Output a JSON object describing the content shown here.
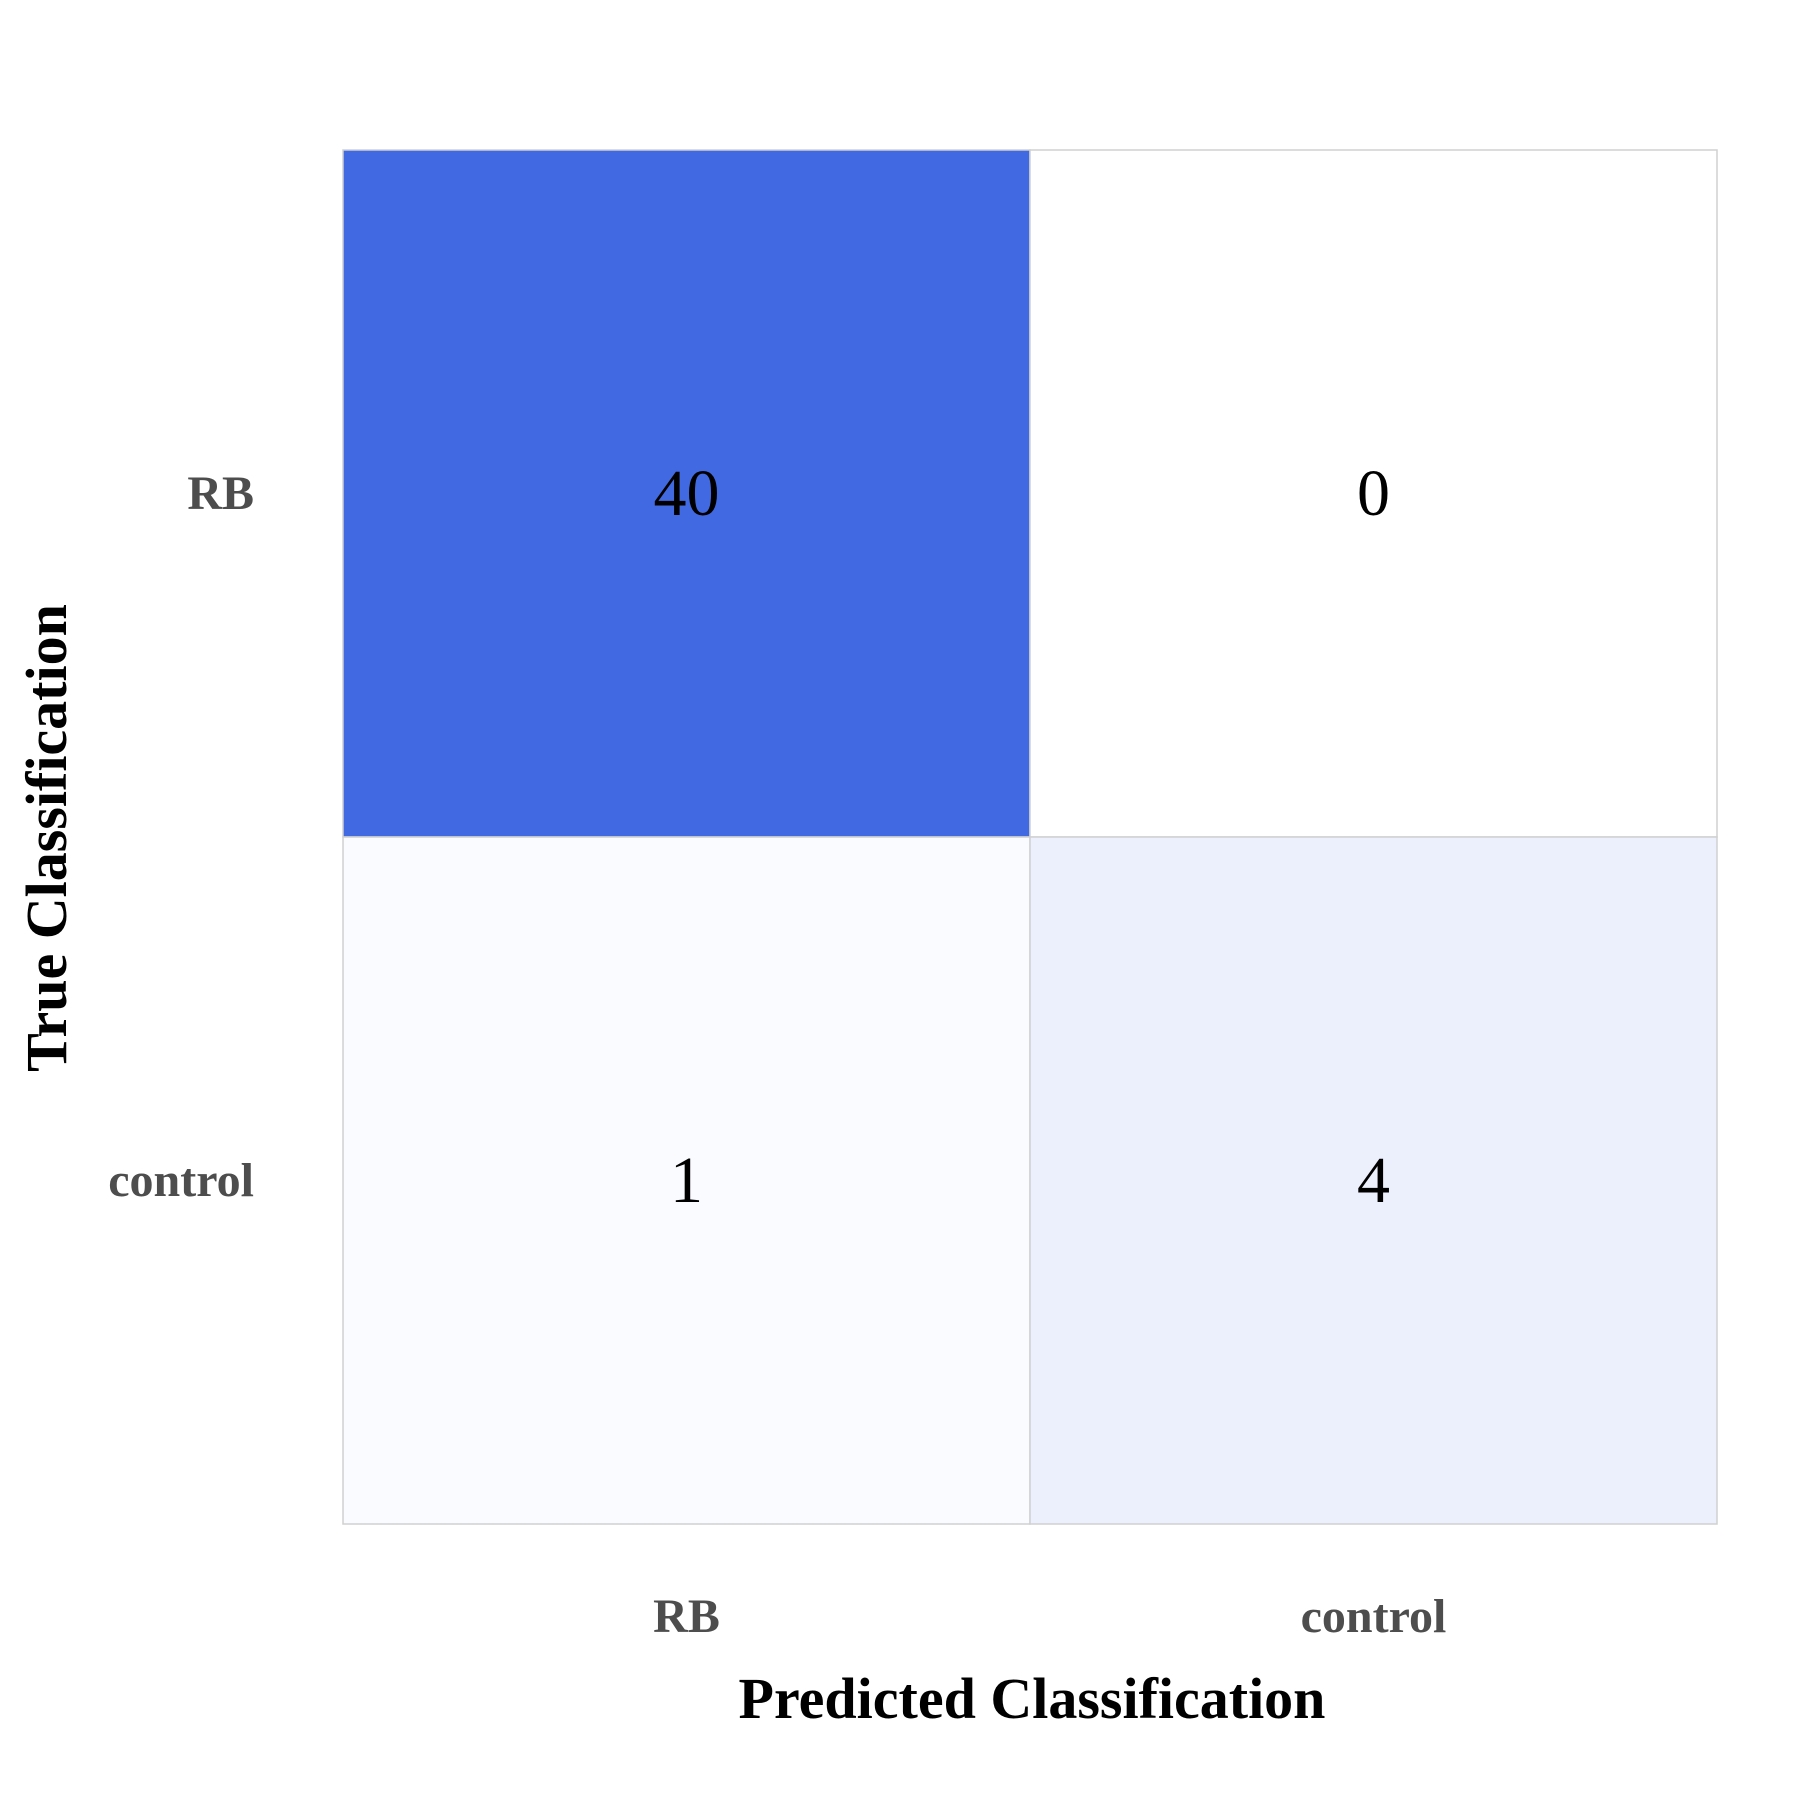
{
  "chart_data": {
    "type": "heatmap",
    "title": "",
    "xlabel": "Predicted Classification",
    "ylabel": "True Classification",
    "x_categories": [
      "RB",
      "control"
    ],
    "y_categories": [
      "RB",
      "control"
    ],
    "values": [
      [
        40,
        0
      ],
      [
        1,
        4
      ]
    ],
    "color_low": "#ffffff",
    "color_high": "#4169e1",
    "grid_color": "#d0d0d0",
    "legend": "none"
  }
}
